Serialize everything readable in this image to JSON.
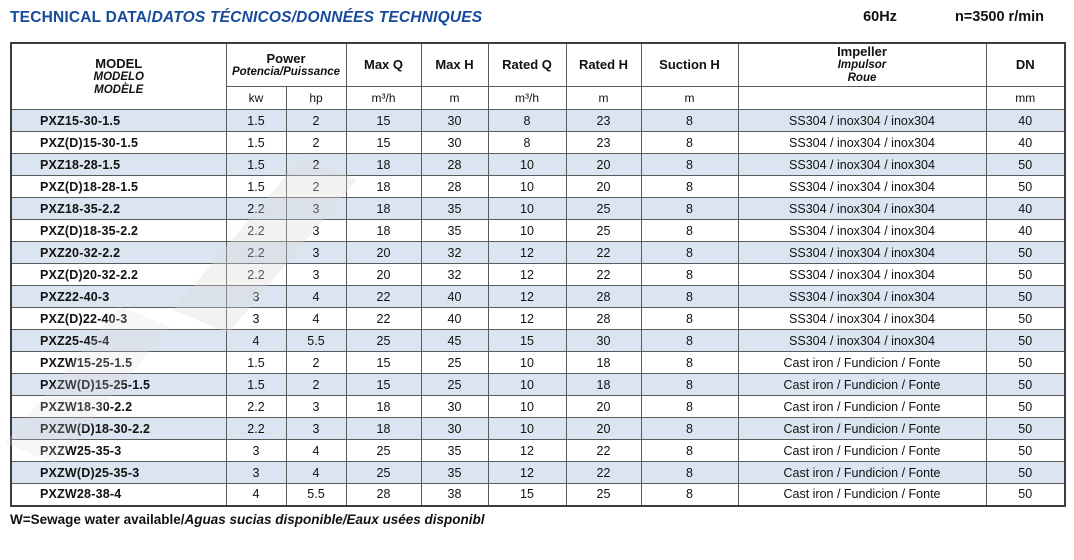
{
  "page": {
    "title_en": "TECHNICAL DATA/",
    "title_intl": "DATOS TÉCNICOS/DONNÉES TECHNIQUES",
    "frequency": "60Hz",
    "speed": "n=3500 r/min",
    "footnote_en": "W=Sewage water available/",
    "footnote_intl": "Aguas sucias disponible/Eaux usées disponibl"
  },
  "colors": {
    "title_blue": "#164a9b",
    "row_stripe": "#dbe5f1",
    "border": "#5a5a5a"
  },
  "table": {
    "headers": {
      "model_lines": [
        "MODEL",
        "MODELO",
        "MODÈLE"
      ],
      "power_label": "Power",
      "power_sub": "Potencia/Puissance",
      "unit_kw": "kw",
      "unit_hp": "hp",
      "max_q_label": "Max Q",
      "max_q_unit": "m³/h",
      "max_h_label": "Max H",
      "max_h_unit": "m",
      "rated_q_label": "Rated Q",
      "rated_q_unit": "m³/h",
      "rated_h_label": "Rated H",
      "rated_h_unit": "m",
      "suction_h_label": "Suction H",
      "suction_h_unit": "m",
      "impeller_lines": [
        "Impeller",
        "Impulsor",
        "Roue"
      ],
      "dn_label": "DN",
      "dn_unit": "mm"
    },
    "rows": [
      [
        "PXZ15-30-1.5",
        "1.5",
        "2",
        "15",
        "30",
        "8",
        "23",
        "8",
        "SS304 / inox304 / inox304",
        "40"
      ],
      [
        "PXZ(D)15-30-1.5",
        "1.5",
        "2",
        "15",
        "30",
        "8",
        "23",
        "8",
        "SS304 / inox304 / inox304",
        "40"
      ],
      [
        "PXZ18-28-1.5",
        "1.5",
        "2",
        "18",
        "28",
        "10",
        "20",
        "8",
        "SS304 / inox304 / inox304",
        "50"
      ],
      [
        "PXZ(D)18-28-1.5",
        "1.5",
        "2",
        "18",
        "28",
        "10",
        "20",
        "8",
        "SS304 / inox304 / inox304",
        "50"
      ],
      [
        "PXZ18-35-2.2",
        "2.2",
        "3",
        "18",
        "35",
        "10",
        "25",
        "8",
        "SS304 / inox304 / inox304",
        "40"
      ],
      [
        "PXZ(D)18-35-2.2",
        "2.2",
        "3",
        "18",
        "35",
        "10",
        "25",
        "8",
        "SS304 / inox304 / inox304",
        "40"
      ],
      [
        "PXZ20-32-2.2",
        "2.2",
        "3",
        "20",
        "32",
        "12",
        "22",
        "8",
        "SS304 / inox304 / inox304",
        "50"
      ],
      [
        "PXZ(D)20-32-2.2",
        "2.2",
        "3",
        "20",
        "32",
        "12",
        "22",
        "8",
        "SS304 / inox304 / inox304",
        "50"
      ],
      [
        "PXZ22-40-3",
        "3",
        "4",
        "22",
        "40",
        "12",
        "28",
        "8",
        "SS304 / inox304 / inox304",
        "50"
      ],
      [
        "PXZ(D)22-40-3",
        "3",
        "4",
        "22",
        "40",
        "12",
        "28",
        "8",
        "SS304 / inox304 / inox304",
        "50"
      ],
      [
        "PXZ25-45-4",
        "4",
        "5.5",
        "25",
        "45",
        "15",
        "30",
        "8",
        "SS304 / inox304 / inox304",
        "50"
      ],
      [
        "PXZW15-25-1.5",
        "1.5",
        "2",
        "15",
        "25",
        "10",
        "18",
        "8",
        "Cast iron / Fundicion / Fonte",
        "50"
      ],
      [
        "PXZW(D)15-25-1.5",
        "1.5",
        "2",
        "15",
        "25",
        "10",
        "18",
        "8",
        "Cast iron / Fundicion / Fonte",
        "50"
      ],
      [
        "PXZW18-30-2.2",
        "2.2",
        "3",
        "18",
        "30",
        "10",
        "20",
        "8",
        "Cast iron / Fundicion / Fonte",
        "50"
      ],
      [
        "PXZW(D)18-30-2.2",
        "2.2",
        "3",
        "18",
        "30",
        "10",
        "20",
        "8",
        "Cast iron / Fundicion / Fonte",
        "50"
      ],
      [
        "PXZW25-35-3",
        "3",
        "4",
        "25",
        "35",
        "12",
        "22",
        "8",
        "Cast iron / Fundicion / Fonte",
        "50"
      ],
      [
        "PXZW(D)25-35-3",
        "3",
        "4",
        "25",
        "35",
        "12",
        "22",
        "8",
        "Cast iron / Fundicion / Fonte",
        "50"
      ],
      [
        "PXZW28-38-4",
        "4",
        "5.5",
        "28",
        "38",
        "15",
        "25",
        "8",
        "Cast iron / Fundicion / Fonte",
        "50"
      ]
    ]
  }
}
